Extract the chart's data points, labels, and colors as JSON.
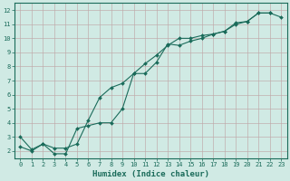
{
  "xlabel": "Humidex (Indice chaleur)",
  "xlim": [
    -0.5,
    23.5
  ],
  "ylim": [
    1.5,
    12.5
  ],
  "xticks": [
    0,
    1,
    2,
    3,
    4,
    5,
    6,
    7,
    8,
    9,
    10,
    11,
    12,
    13,
    14,
    15,
    16,
    17,
    18,
    19,
    20,
    21,
    22,
    23
  ],
  "yticks": [
    2,
    3,
    4,
    5,
    6,
    7,
    8,
    9,
    10,
    11,
    12
  ],
  "bg_color": "#d0eae4",
  "grid_color": "#c0a8a8",
  "line_color": "#1a6b5a",
  "line1_x": [
    0,
    1,
    2,
    3,
    4,
    5,
    6,
    7,
    8,
    9,
    10,
    11,
    12,
    13,
    14,
    15,
    16,
    17,
    18,
    19,
    20,
    21,
    22
  ],
  "line1_y": [
    3.0,
    2.1,
    2.5,
    1.8,
    1.8,
    3.6,
    3.8,
    4.0,
    4.0,
    5.0,
    7.5,
    7.5,
    8.3,
    9.6,
    9.5,
    9.8,
    10.0,
    10.3,
    10.5,
    11.0,
    11.2,
    11.8,
    11.8
  ],
  "line2_x": [
    0,
    1,
    2,
    3,
    4,
    5,
    6,
    7,
    8,
    9,
    10,
    11,
    12,
    13,
    14,
    15,
    16,
    17,
    18,
    19,
    20,
    21,
    22,
    23
  ],
  "line2_y": [
    2.3,
    2.0,
    2.5,
    2.2,
    2.2,
    2.5,
    4.2,
    5.8,
    6.5,
    6.8,
    7.5,
    8.2,
    8.8,
    9.5,
    10.0,
    10.0,
    10.2,
    10.3,
    10.5,
    11.1,
    11.2,
    11.8,
    11.8,
    11.5
  ],
  "tick_fontsize": 5.0,
  "xlabel_fontsize": 6.5
}
